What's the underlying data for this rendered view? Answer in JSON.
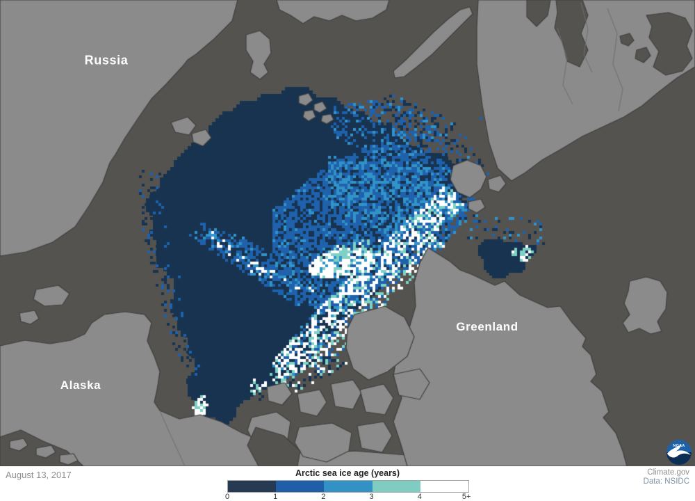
{
  "map": {
    "labels": {
      "russia": "Russia",
      "alaska": "Alaska",
      "greenland": "Greenland"
    },
    "colors": {
      "ocean": "#555350",
      "land": "#8b8b8b",
      "coast": "#3f3f3f",
      "border_line": "#6e6e6e",
      "ice_0_1": "#17334f",
      "ice_1_2": "#1f61ab",
      "ice_2_3": "#3293c8",
      "ice_3_4": "#7fd0c5",
      "ice_5plus": "#ffffff",
      "label_text": "#ffffff"
    }
  },
  "footer": {
    "date": "August 13, 2017",
    "legend": {
      "title": "Arctic sea ice age (years)",
      "ticks": [
        "0",
        "1",
        "2",
        "3",
        "4",
        "5+"
      ],
      "colors": [
        "#263a52",
        "#1f5fa8",
        "#3292c6",
        "#7fcdc2",
        "#ffffff"
      ]
    },
    "credits": {
      "line1": "Climate.gov",
      "line2": "Data: NSIDC"
    },
    "colors": {
      "bar_bg": "#ffffff",
      "date_text": "#8f8f8f",
      "title_text": "#222222",
      "tick_text": "#333333",
      "credit1_text": "#8f8f8f",
      "credit2_text": "#7d93a5",
      "bar_border": "#a3a3a3"
    }
  },
  "logo": {
    "label": "NOAA",
    "colors": {
      "circle_top": "#1d62a6",
      "circle_bottom": "#0c2e55",
      "bird": "#ffffff",
      "text": "#ffffff"
    }
  }
}
